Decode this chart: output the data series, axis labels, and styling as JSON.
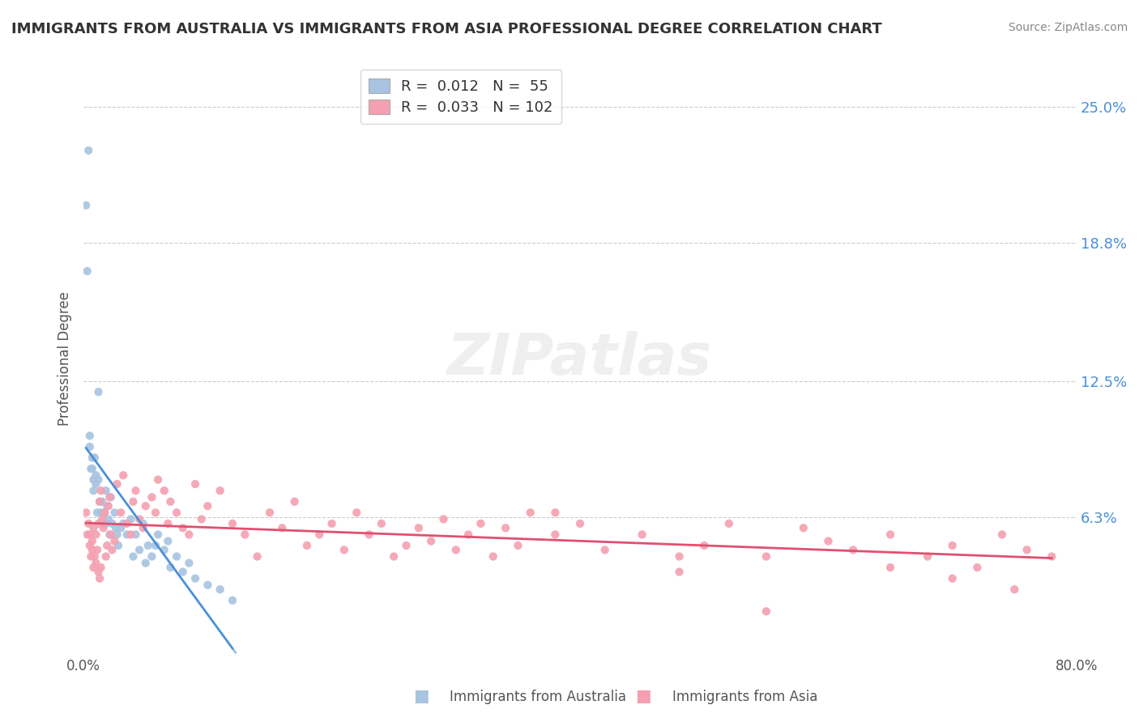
{
  "title": "IMMIGRANTS FROM AUSTRALIA VS IMMIGRANTS FROM ASIA PROFESSIONAL DEGREE CORRELATION CHART",
  "source": "Source: ZipAtlas.com",
  "ylabel": "Professional Degree",
  "ytick_labels": [
    "6.3%",
    "12.5%",
    "18.8%",
    "25.0%"
  ],
  "ytick_values": [
    0.063,
    0.125,
    0.188,
    0.25
  ],
  "xlim": [
    0.0,
    0.8
  ],
  "ylim": [
    0.0,
    0.27
  ],
  "legend_r_australia": "0.012",
  "legend_n_australia": "55",
  "legend_r_asia": "0.033",
  "legend_n_asia": "102",
  "color_australia": "#a8c4e0",
  "color_asia": "#f4a0b0",
  "trend_color_australia": "#4a90d9",
  "trend_color_asia": "#e05070",
  "australia_x": [
    0.002,
    0.003,
    0.004,
    0.005,
    0.005,
    0.006,
    0.007,
    0.007,
    0.008,
    0.008,
    0.009,
    0.01,
    0.01,
    0.011,
    0.012,
    0.012,
    0.013,
    0.014,
    0.015,
    0.016,
    0.017,
    0.018,
    0.018,
    0.019,
    0.02,
    0.021,
    0.022,
    0.023,
    0.025,
    0.026,
    0.027,
    0.028,
    0.03,
    0.032,
    0.035,
    0.038,
    0.04,
    0.042,
    0.045,
    0.048,
    0.05,
    0.052,
    0.055,
    0.058,
    0.06,
    0.065,
    0.068,
    0.07,
    0.075,
    0.08,
    0.085,
    0.09,
    0.1,
    0.11,
    0.12
  ],
  "australia_y": [
    0.205,
    0.175,
    0.23,
    0.095,
    0.1,
    0.085,
    0.085,
    0.09,
    0.075,
    0.08,
    0.09,
    0.082,
    0.078,
    0.065,
    0.08,
    0.12,
    0.07,
    0.065,
    0.07,
    0.06,
    0.065,
    0.06,
    0.075,
    0.068,
    0.062,
    0.055,
    0.072,
    0.06,
    0.065,
    0.058,
    0.055,
    0.05,
    0.058,
    0.06,
    0.055,
    0.062,
    0.045,
    0.055,
    0.048,
    0.06,
    0.042,
    0.05,
    0.045,
    0.05,
    0.055,
    0.048,
    0.052,
    0.04,
    0.045,
    0.038,
    0.042,
    0.035,
    0.032,
    0.03,
    0.025
  ],
  "asia_x": [
    0.002,
    0.003,
    0.004,
    0.005,
    0.005,
    0.006,
    0.007,
    0.007,
    0.008,
    0.008,
    0.009,
    0.01,
    0.01,
    0.011,
    0.012,
    0.012,
    0.013,
    0.013,
    0.014,
    0.014,
    0.015,
    0.016,
    0.017,
    0.018,
    0.019,
    0.02,
    0.021,
    0.022,
    0.023,
    0.025,
    0.027,
    0.03,
    0.032,
    0.035,
    0.038,
    0.04,
    0.042,
    0.045,
    0.048,
    0.05,
    0.055,
    0.058,
    0.06,
    0.065,
    0.068,
    0.07,
    0.075,
    0.08,
    0.085,
    0.09,
    0.095,
    0.1,
    0.11,
    0.12,
    0.13,
    0.14,
    0.15,
    0.16,
    0.17,
    0.18,
    0.19,
    0.2,
    0.21,
    0.22,
    0.23,
    0.24,
    0.25,
    0.26,
    0.27,
    0.28,
    0.29,
    0.3,
    0.31,
    0.32,
    0.33,
    0.34,
    0.35,
    0.36,
    0.38,
    0.4,
    0.42,
    0.45,
    0.48,
    0.5,
    0.52,
    0.55,
    0.58,
    0.6,
    0.62,
    0.65,
    0.68,
    0.7,
    0.72,
    0.74,
    0.76,
    0.78,
    0.75,
    0.65,
    0.55,
    0.7,
    0.48,
    0.38
  ],
  "asia_y": [
    0.065,
    0.055,
    0.06,
    0.05,
    0.055,
    0.045,
    0.048,
    0.052,
    0.04,
    0.058,
    0.045,
    0.055,
    0.042,
    0.048,
    0.038,
    0.06,
    0.07,
    0.035,
    0.075,
    0.04,
    0.062,
    0.058,
    0.065,
    0.045,
    0.05,
    0.068,
    0.072,
    0.055,
    0.048,
    0.052,
    0.078,
    0.065,
    0.082,
    0.06,
    0.055,
    0.07,
    0.075,
    0.062,
    0.058,
    0.068,
    0.072,
    0.065,
    0.08,
    0.075,
    0.06,
    0.07,
    0.065,
    0.058,
    0.055,
    0.078,
    0.062,
    0.068,
    0.075,
    0.06,
    0.055,
    0.045,
    0.065,
    0.058,
    0.07,
    0.05,
    0.055,
    0.06,
    0.048,
    0.065,
    0.055,
    0.06,
    0.045,
    0.05,
    0.058,
    0.052,
    0.062,
    0.048,
    0.055,
    0.06,
    0.045,
    0.058,
    0.05,
    0.065,
    0.055,
    0.06,
    0.048,
    0.055,
    0.045,
    0.05,
    0.06,
    0.045,
    0.058,
    0.052,
    0.048,
    0.055,
    0.045,
    0.05,
    0.04,
    0.055,
    0.048,
    0.045,
    0.03,
    0.04,
    0.02,
    0.035,
    0.038,
    0.065
  ]
}
